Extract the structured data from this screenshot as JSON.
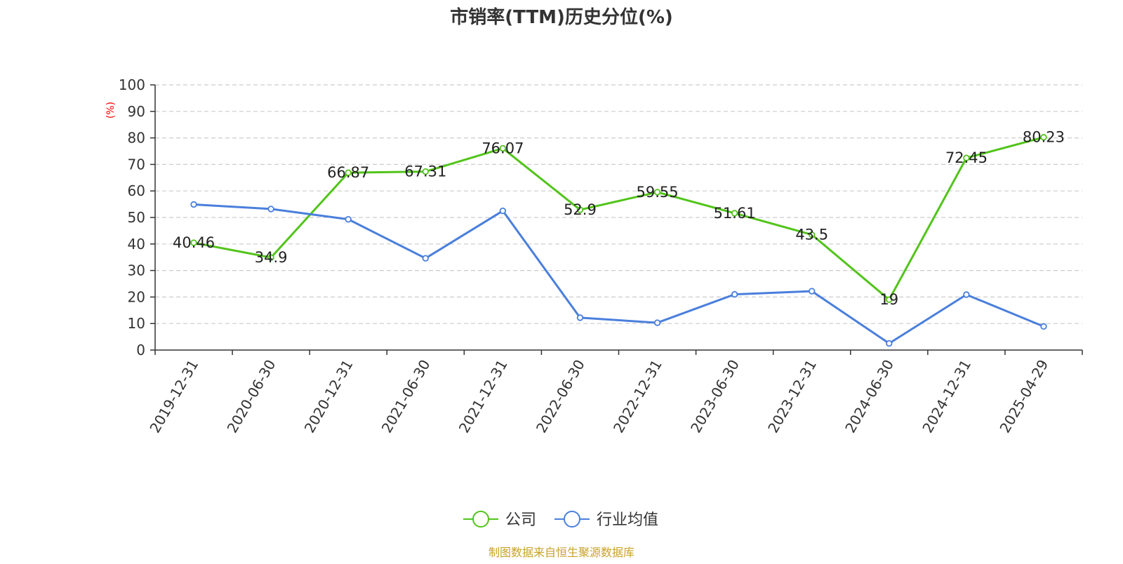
{
  "chart_data": {
    "type": "line",
    "title": "市销率(TTM)历史分位(%)",
    "ylabel": "(%)",
    "xlabel": "",
    "ylim": [
      0,
      100
    ],
    "yticks": [
      0,
      10,
      20,
      30,
      40,
      50,
      60,
      70,
      80,
      90,
      100
    ],
    "grid": true,
    "legend_position": "bottom-center",
    "categories": [
      "2019-12-31",
      "2020-06-30",
      "2020-12-31",
      "2021-06-30",
      "2021-12-31",
      "2022-06-30",
      "2022-12-31",
      "2023-06-30",
      "2023-12-31",
      "2024-06-30",
      "2024-12-31",
      "2025-04-29"
    ],
    "series": [
      {
        "name": "公司",
        "color": "#52c41a",
        "values": [
          40.46,
          34.9,
          66.87,
          67.31,
          76.07,
          52.9,
          59.55,
          51.61,
          43.5,
          19,
          72.45,
          80.23
        ],
        "labels": [
          "40.46",
          "34.9",
          "66.87",
          "67.31",
          "76.07",
          "52.9",
          "59.55",
          "51.61",
          "43.5",
          "19",
          "72.45",
          "80.23"
        ],
        "show_labels": true
      },
      {
        "name": "行业均值",
        "color": "#4a7fdc",
        "values": [
          54.9,
          53.2,
          49.3,
          34.6,
          52.5,
          12.2,
          10.3,
          21.0,
          22.2,
          2.5,
          20.9,
          8.9
        ],
        "show_labels": false
      }
    ],
    "source": "制图数据来自恒生聚源数据库"
  },
  "colors": {
    "title": "#333333",
    "axis": "#333333",
    "grid": "#cccccc",
    "ylabel": "#ff0000",
    "source": "#c9a227"
  }
}
